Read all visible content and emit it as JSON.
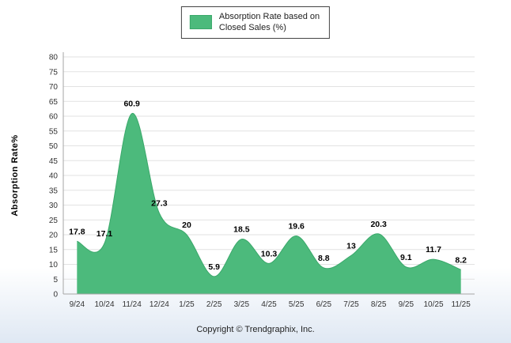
{
  "legend": {
    "lines": [
      "Absorption Rate based on",
      "Closed Sales (%)"
    ]
  },
  "footer": {
    "copyright": "Copyright © Trendgraphix, Inc."
  },
  "chart_data": {
    "type": "area",
    "title": "",
    "series_name": "Absorption Rate based on Closed Sales (%)",
    "categories": [
      "9/24",
      "10/24",
      "11/24",
      "12/24",
      "1/25",
      "2/25",
      "3/25",
      "4/25",
      "5/25",
      "6/25",
      "7/25",
      "8/25",
      "9/25",
      "10/25",
      "11/25"
    ],
    "values": [
      17.8,
      17.1,
      60.9,
      27.3,
      20,
      5.9,
      18.5,
      10.3,
      19.6,
      8.8,
      13,
      20.3,
      9.1,
      11.7,
      8.2
    ],
    "value_labels": [
      "17.8",
      "17.1",
      "60.9",
      "27.3",
      "20",
      "5.9",
      "18.5",
      "10.3",
      "19.6",
      "8.8",
      "13",
      "20.3",
      "9.1",
      "11.7",
      "8.2"
    ],
    "xlabel": "",
    "ylabel": "Absorption Rate%",
    "ylim": [
      0,
      80
    ],
    "ytick_step": 5,
    "grid": true,
    "legend_position": "top"
  },
  "colors": {
    "series_fill": "#4cba7c",
    "series_stroke": "#3aa86a",
    "grid_line": "#e2e2e2",
    "axis_line": "#a6a6a6",
    "tick_text": "#333333",
    "value_label_text": "#000000",
    "axis_title_text": "#000000",
    "legend_border": "#444444",
    "background_top": "#ffffff",
    "background_bottom": "#dfe8f3"
  }
}
